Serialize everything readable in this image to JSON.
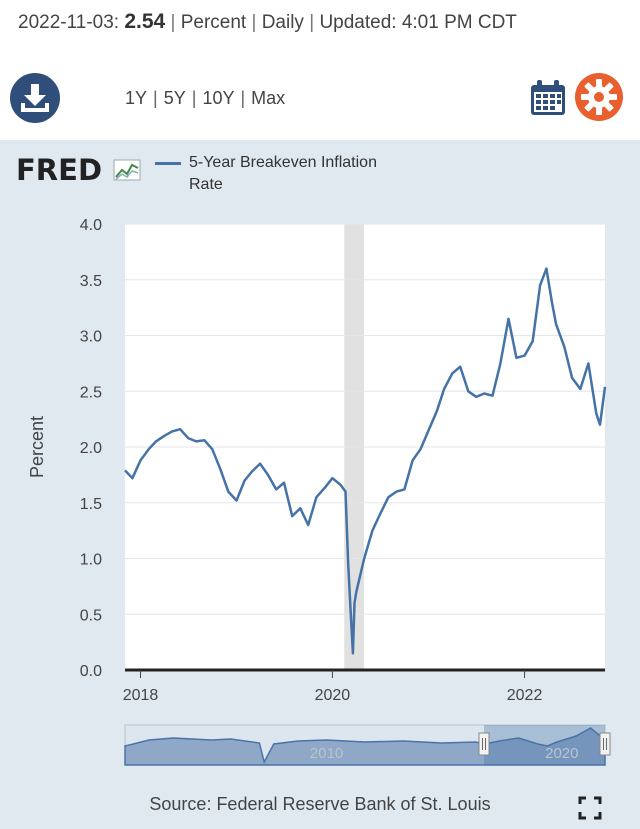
{
  "header": {
    "date": "2022-11-03:",
    "value": "2.54",
    "unit": "Percent",
    "frequency": "Daily",
    "updated": "Updated: 4:01 PM CDT"
  },
  "toolbar": {
    "download_icon": "download-icon",
    "ranges": [
      "1Y",
      "5Y",
      "10Y",
      "Max"
    ],
    "calendar_icon": "calendar-icon",
    "settings_icon": "gear-icon"
  },
  "brand": {
    "logo_text": "FRED",
    "logo_icon": "fred-chart-icon"
  },
  "legend": {
    "series_name": "5-Year Breakeven Inflation Rate"
  },
  "source": "Source: Federal Reserve Bank of St. Louis",
  "colors": {
    "series": "#4572a7",
    "recession": "#e1e1e1",
    "download": "#2f4f7a",
    "calendar": "#2f4f7a",
    "settings": "#e9602e",
    "background": "#e1e9f0",
    "navigator": "#8fa8c8"
  },
  "chart_data": {
    "type": "line",
    "ylabel": "Percent",
    "ylim": [
      0,
      4
    ],
    "yticks": [
      "0.0",
      "0.5",
      "1.0",
      "1.5",
      "2.0",
      "2.5",
      "3.0",
      "3.5",
      "4.0"
    ],
    "xlim": [
      "2017-11-03",
      "2022-11-03"
    ],
    "xticks": [
      "2018",
      "2020",
      "2022"
    ],
    "grid": true,
    "recession": [
      "2020-02-15",
      "2020-04-30"
    ],
    "series": [
      {
        "name": "5-Year Breakeven Inflation Rate",
        "x": [
          "2017-11-03",
          "2017-12-01",
          "2018-01-01",
          "2018-02-01",
          "2018-03-01",
          "2018-04-01",
          "2018-05-01",
          "2018-06-01",
          "2018-07-01",
          "2018-08-01",
          "2018-09-01",
          "2018-10-01",
          "2018-11-01",
          "2018-12-01",
          "2019-01-01",
          "2019-02-01",
          "2019-03-01",
          "2019-04-01",
          "2019-05-01",
          "2019-06-01",
          "2019-07-01",
          "2019-08-01",
          "2019-09-01",
          "2019-10-01",
          "2019-11-01",
          "2019-12-01",
          "2020-01-01",
          "2020-02-01",
          "2020-02-20",
          "2020-03-01",
          "2020-03-10",
          "2020-03-19",
          "2020-03-25",
          "2020-04-01",
          "2020-05-01",
          "2020-06-01",
          "2020-07-01",
          "2020-08-01",
          "2020-09-01",
          "2020-10-01",
          "2020-11-01",
          "2020-12-01",
          "2021-01-01",
          "2021-02-01",
          "2021-03-01",
          "2021-04-01",
          "2021-05-01",
          "2021-06-01",
          "2021-07-01",
          "2021-08-01",
          "2021-09-01",
          "2021-10-01",
          "2021-11-01",
          "2021-12-01",
          "2022-01-01",
          "2022-02-01",
          "2022-03-01",
          "2022-03-25",
          "2022-04-15",
          "2022-05-01",
          "2022-06-01",
          "2022-07-01",
          "2022-08-01",
          "2022-09-01",
          "2022-10-01",
          "2022-10-15",
          "2022-11-03"
        ],
        "values": [
          1.79,
          1.72,
          1.88,
          1.98,
          2.05,
          2.1,
          2.14,
          2.16,
          2.08,
          2.05,
          2.06,
          1.98,
          1.8,
          1.6,
          1.52,
          1.7,
          1.78,
          1.85,
          1.75,
          1.62,
          1.68,
          1.38,
          1.45,
          1.3,
          1.55,
          1.63,
          1.72,
          1.66,
          1.6,
          0.95,
          0.55,
          0.15,
          0.6,
          0.7,
          1.0,
          1.25,
          1.4,
          1.55,
          1.6,
          1.62,
          1.88,
          1.98,
          2.15,
          2.32,
          2.52,
          2.66,
          2.72,
          2.5,
          2.45,
          2.48,
          2.46,
          2.75,
          3.15,
          2.8,
          2.82,
          2.95,
          3.45,
          3.6,
          3.3,
          3.1,
          2.9,
          2.62,
          2.52,
          2.75,
          2.3,
          2.2,
          2.54
        ]
      }
    ]
  },
  "navigator": {
    "xticks": [
      "2010",
      "2020"
    ]
  }
}
